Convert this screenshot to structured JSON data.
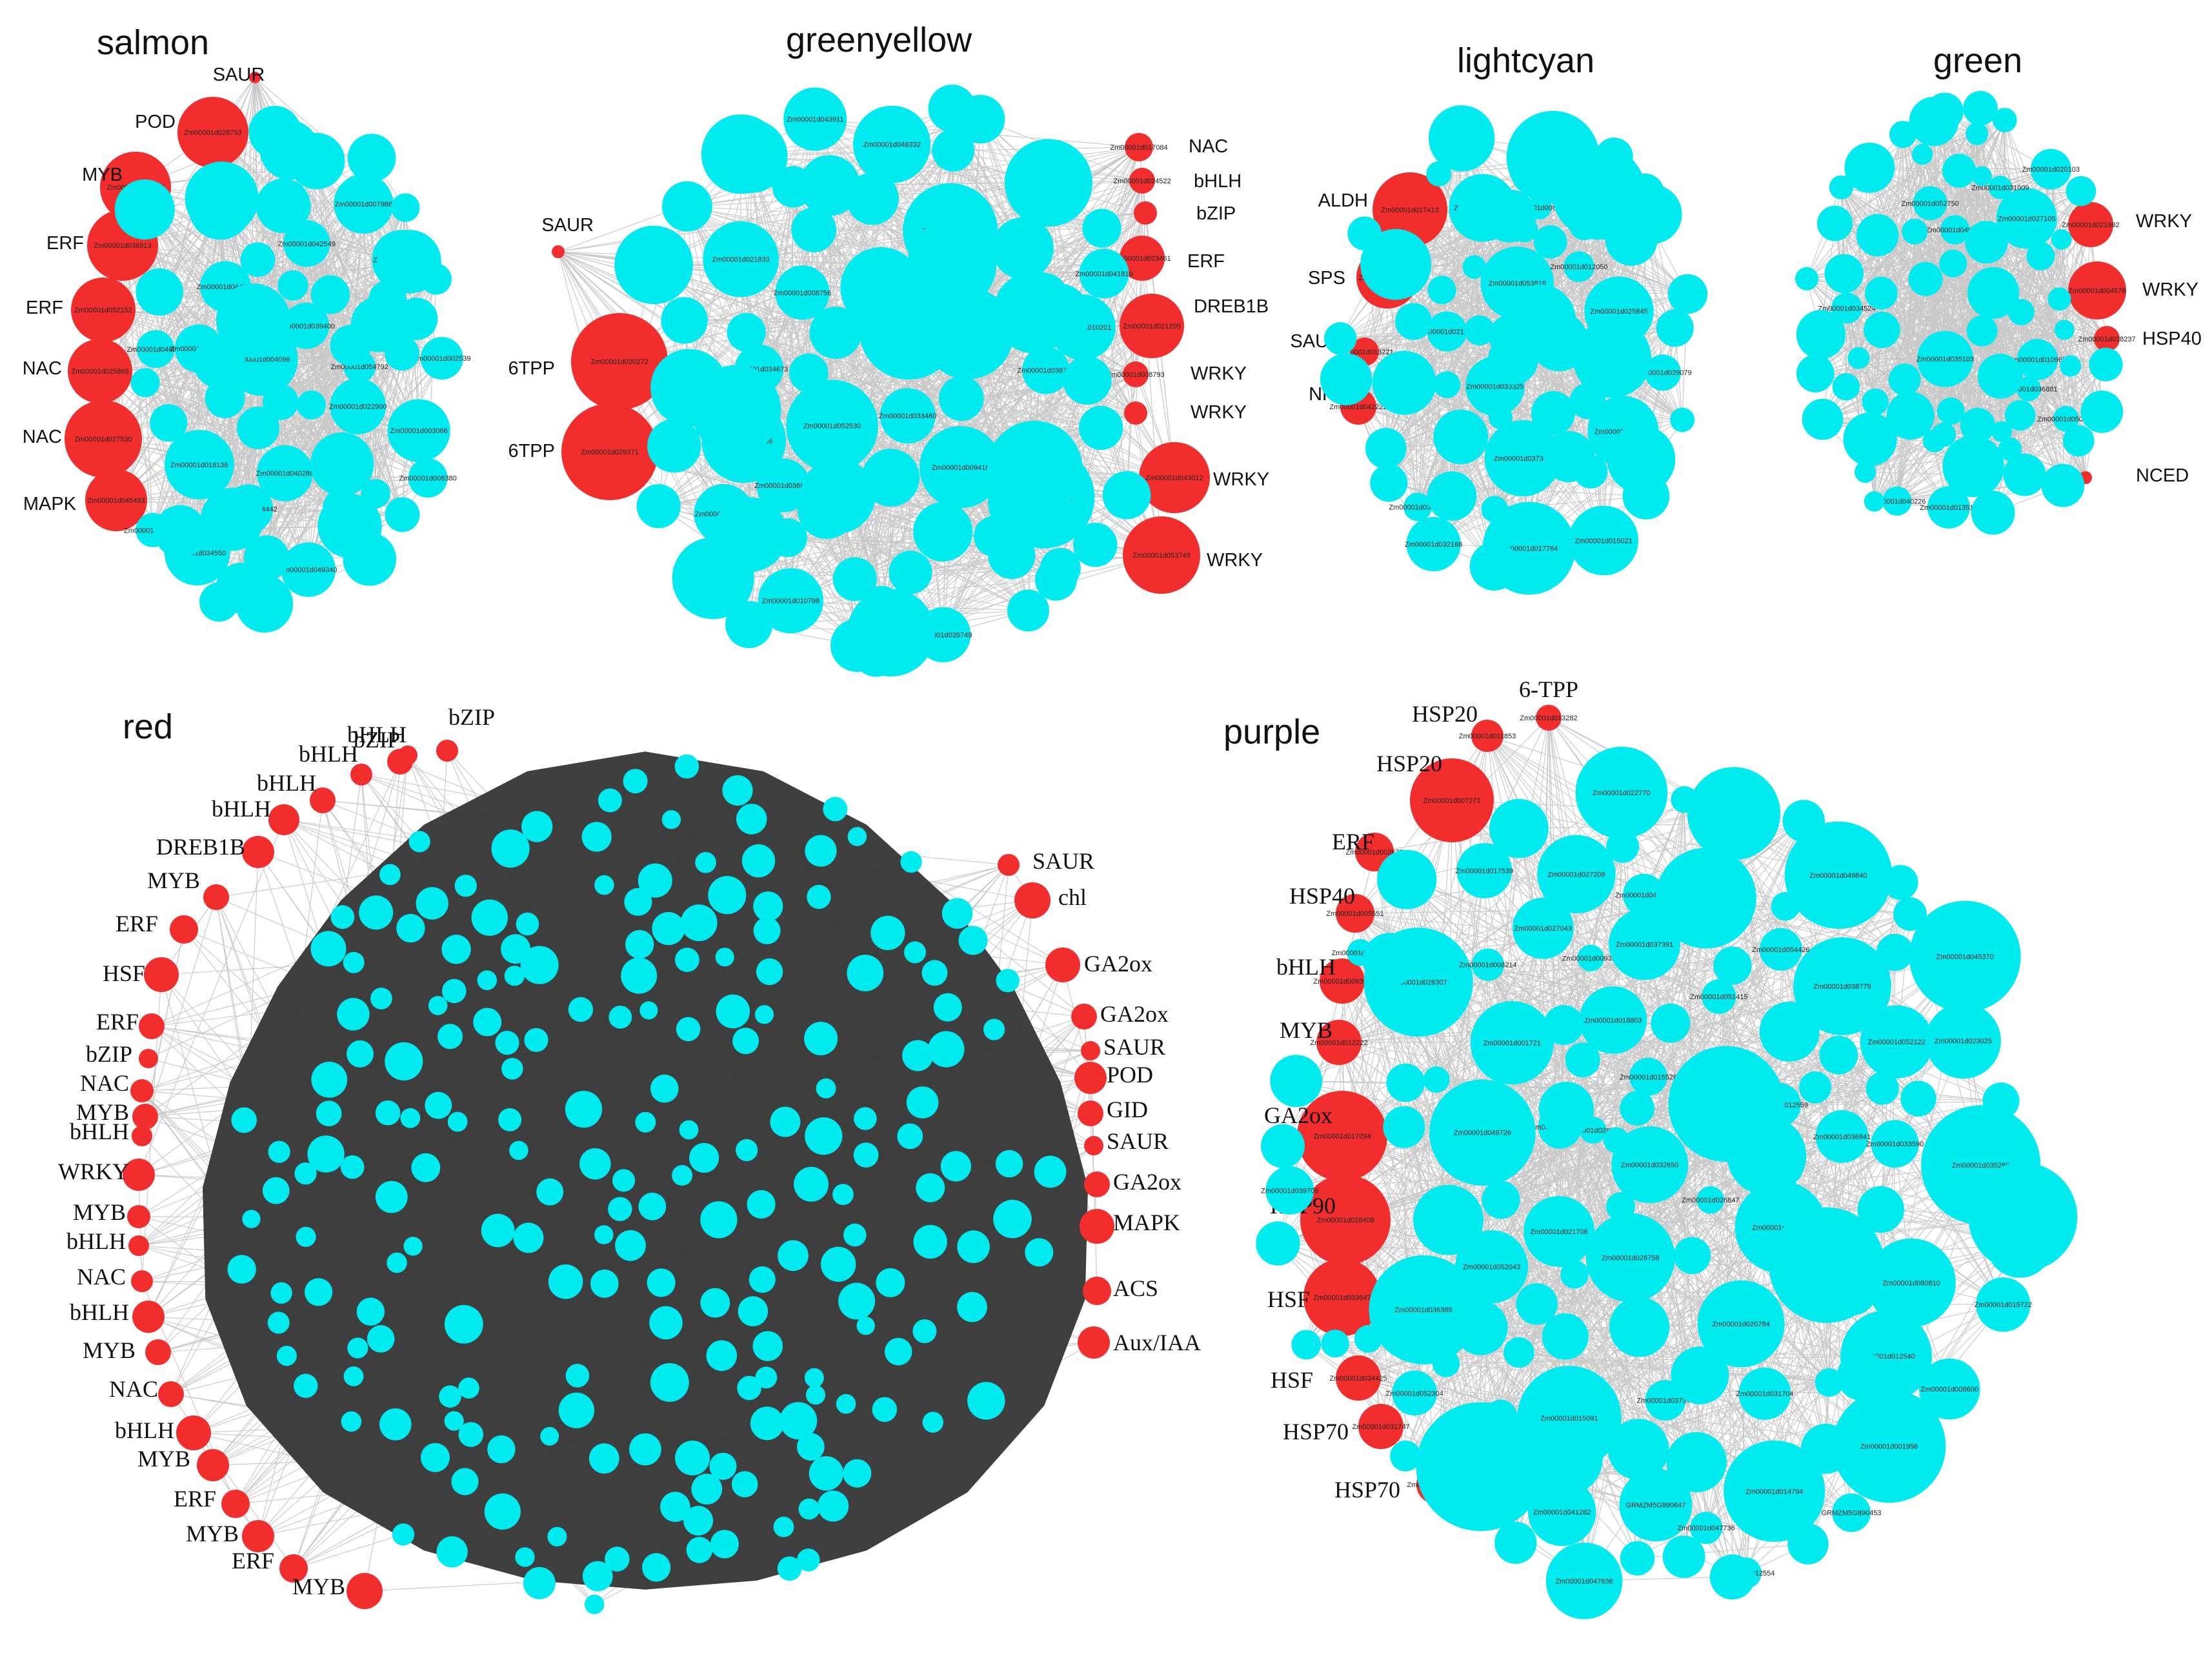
{
  "colors": {
    "hub": "#f22d2d",
    "node": "#00ebf0",
    "edge": "#3a3a3a",
    "background": "#ffffff"
  },
  "modules": [
    {
      "id": "salmon",
      "title": "salmon",
      "nodes": [
        {
          "id": "Zm00001d021457",
          "label": "SAUR"
        },
        {
          "id": "Zm00001d028753",
          "label": "POD"
        },
        {
          "id": "Zm00001d012263",
          "label": "MYB"
        },
        {
          "id": "Zm00001d036913",
          "label": "ERF"
        },
        {
          "id": "Zm00001d052152",
          "label": "ERF"
        },
        {
          "id": "Zm00001d025865",
          "label": "NAC"
        },
        {
          "id": "Zm00001d027530",
          "label": "NAC"
        },
        {
          "id": "Zm00001d045493",
          "label": "MAPK"
        },
        {
          "id": "Zm00001d002539",
          "label": ""
        },
        {
          "id": "Zm00001d049340",
          "label": ""
        },
        {
          "id": "Zm00001d034550",
          "label": ""
        },
        {
          "id": "Zm00001d042549",
          "label": ""
        },
        {
          "id": "Zm00001d007466",
          "label": ""
        },
        {
          "id": "Zm00001d043312",
          "label": ""
        },
        {
          "id": "Zm00001d018136",
          "label": ""
        },
        {
          "id": "Zm00001d022900",
          "label": ""
        },
        {
          "id": "Zm00001d046842",
          "label": ""
        },
        {
          "id": "Zm00001d039400",
          "label": ""
        },
        {
          "id": "Zm00001d049557",
          "label": ""
        },
        {
          "id": "Zm00001d044442",
          "label": ""
        },
        {
          "id": "Zm00001d007986",
          "label": ""
        },
        {
          "id": "Zm00001d008380",
          "label": ""
        },
        {
          "id": "Zm00001d044713",
          "label": ""
        },
        {
          "id": "Zm00001d054792",
          "label": ""
        },
        {
          "id": "Zm00001d052009",
          "label": ""
        },
        {
          "id": "Zm00001d004096",
          "label": ""
        },
        {
          "id": "Zm00001d040286",
          "label": ""
        },
        {
          "id": "Zm00001d003066",
          "label": ""
        }
      ]
    },
    {
      "id": "greenyellow",
      "title": "greenyellow",
      "nodes": [
        {
          "id": "Zm00001d017084",
          "label": "NAC"
        },
        {
          "id": "Zm00001d024522",
          "label": "bHLH"
        },
        {
          "id": "Zm00001d038734",
          "label": "bZIP"
        },
        {
          "id": "Zm00001d002385",
          "label": "SAUR"
        },
        {
          "id": "Zm00001d023461",
          "label": "ERF"
        },
        {
          "id": "Zm00001d021205",
          "label": "DREB1B"
        },
        {
          "id": "Zm00001d020272",
          "label": "6TPP"
        },
        {
          "id": "Zm00001d008793",
          "label": "WRKY"
        },
        {
          "id": "Zm00001d016720",
          "label": "WRKY"
        },
        {
          "id": "Zm00001d029371",
          "label": "6TPP"
        },
        {
          "id": "Zm00001d043012",
          "label": "WRKY"
        },
        {
          "id": "Zm00001d053749",
          "label": "WRKY"
        },
        {
          "id": "Zm00001d042812",
          "label": ""
        },
        {
          "id": "Zm00001d010201",
          "label": ""
        },
        {
          "id": "Zm00001d010798",
          "label": ""
        },
        {
          "id": "Zm00001d009418",
          "label": ""
        },
        {
          "id": "Zm00001d034673",
          "label": ""
        },
        {
          "id": "Zm00001d052530",
          "label": ""
        },
        {
          "id": "Zm00001d021833",
          "label": ""
        },
        {
          "id": "Zm00001d043911",
          "label": ""
        },
        {
          "id": "Zm00001d036781",
          "label": ""
        },
        {
          "id": "Zm00001d035749",
          "label": ""
        },
        {
          "id": "Zm00001d036823",
          "label": ""
        },
        {
          "id": "Zm00001d017568",
          "label": ""
        },
        {
          "id": "Zm00001d008756",
          "label": ""
        },
        {
          "id": "Zm00001d041819",
          "label": ""
        },
        {
          "id": "Zm00001d048332",
          "label": ""
        },
        {
          "id": "Zm00001d014737",
          "label": ""
        },
        {
          "id": "Zm00001d025722",
          "label": ""
        },
        {
          "id": "Zm00001d047136",
          "label": ""
        },
        {
          "id": "Zm00001d028002",
          "label": ""
        },
        {
          "id": "Zm00001d033460",
          "label": ""
        }
      ]
    },
    {
      "id": "lightcyan",
      "title": "lightcyan",
      "nodes": [
        {
          "id": "Zm00001d017413",
          "label": "ALDH"
        },
        {
          "id": "Zm00001d012053",
          "label": "SPS"
        },
        {
          "id": "Zm00001d013221",
          "label": "SAUR"
        },
        {
          "id": "Zm00001d042222",
          "label": "NR"
        },
        {
          "id": "Zm00001d043621",
          "label": ""
        },
        {
          "id": "Zm00001d032188",
          "label": ""
        },
        {
          "id": "Zm00001d015021",
          "label": ""
        },
        {
          "id": "Zm00001d025845",
          "label": ""
        },
        {
          "id": "Zm00001d053818",
          "label": ""
        },
        {
          "id": "Zm00001d021561",
          "label": ""
        },
        {
          "id": "Zm00001d034022",
          "label": ""
        },
        {
          "id": "Zm00001d043783",
          "label": ""
        },
        {
          "id": "Zm00001d033325",
          "label": ""
        },
        {
          "id": "Zm00001d029079",
          "label": ""
        },
        {
          "id": "Zm00001d012050",
          "label": ""
        },
        {
          "id": "Zm00001d037383",
          "label": ""
        },
        {
          "id": "Zm00001d008351",
          "label": ""
        },
        {
          "id": "Zm00001d034765",
          "label": ""
        },
        {
          "id": "Zm00001d017764",
          "label": ""
        },
        {
          "id": "Zm00001d004570",
          "label": ""
        }
      ]
    },
    {
      "id": "green",
      "title": "green",
      "nodes": [
        {
          "id": "Zm00001d021992",
          "label": "WRKY"
        },
        {
          "id": "Zm00001d004576",
          "label": "WRKY"
        },
        {
          "id": "Zm00001d028237",
          "label": "HSP40"
        },
        {
          "id": "Zm00001d015813",
          "label": "NCED"
        },
        {
          "id": "Zm00001d040543",
          "label": ""
        },
        {
          "id": "Zm00001d007687",
          "label": ""
        },
        {
          "id": "Zm00001d034524",
          "label": ""
        },
        {
          "id": "Zm00001d035103",
          "label": ""
        },
        {
          "id": "Zm00001d052750",
          "label": ""
        },
        {
          "id": "Zm00001d010965",
          "label": ""
        },
        {
          "id": "Zm00001d013517",
          "label": ""
        },
        {
          "id": "Zm00001d050001",
          "label": ""
        },
        {
          "id": "Zm00001d020103",
          "label": ""
        },
        {
          "id": "Zm00001d036881",
          "label": ""
        },
        {
          "id": "Zm00001d027105",
          "label": ""
        },
        {
          "id": "Zm00001d040226",
          "label": ""
        },
        {
          "id": "Zm00001d031009",
          "label": ""
        }
      ]
    },
    {
      "id": "red",
      "title": "red",
      "nodes": [
        {
          "id": "",
          "label": "bZIP"
        },
        {
          "id": "",
          "label": "bHLH"
        },
        {
          "id": "",
          "label": "bZIP"
        },
        {
          "id": "",
          "label": "bHLH"
        },
        {
          "id": "",
          "label": "bHLH"
        },
        {
          "id": "",
          "label": "bHLH"
        },
        {
          "id": "",
          "label": "DREB1B"
        },
        {
          "id": "",
          "label": "MYB"
        },
        {
          "id": "",
          "label": "ERF"
        },
        {
          "id": "",
          "label": "HSF"
        },
        {
          "id": "",
          "label": "ERF"
        },
        {
          "id": "",
          "label": "bZIP"
        },
        {
          "id": "",
          "label": "NAC"
        },
        {
          "id": "",
          "label": "MYB"
        },
        {
          "id": "",
          "label": "bHLH"
        },
        {
          "id": "",
          "label": "WRKY"
        },
        {
          "id": "",
          "label": "MYB"
        },
        {
          "id": "",
          "label": "bHLH"
        },
        {
          "id": "",
          "label": "NAC"
        },
        {
          "id": "",
          "label": "bHLH"
        },
        {
          "id": "",
          "label": "MYB"
        },
        {
          "id": "",
          "label": "NAC"
        },
        {
          "id": "",
          "label": "bHLH"
        },
        {
          "id": "",
          "label": "MYB"
        },
        {
          "id": "",
          "label": "ERF"
        },
        {
          "id": "",
          "label": "MYB"
        },
        {
          "id": "",
          "label": "ERF"
        },
        {
          "id": "",
          "label": "MYB"
        },
        {
          "id": "",
          "label": "SAUR"
        },
        {
          "id": "",
          "label": "chl"
        },
        {
          "id": "",
          "label": "GA2ox"
        },
        {
          "id": "",
          "label": "GA2ox"
        },
        {
          "id": "",
          "label": "SAUR"
        },
        {
          "id": "",
          "label": "POD"
        },
        {
          "id": "",
          "label": "GID"
        },
        {
          "id": "",
          "label": "SAUR"
        },
        {
          "id": "",
          "label": "GA2ox"
        },
        {
          "id": "",
          "label": "MAPK"
        },
        {
          "id": "",
          "label": "ACS"
        },
        {
          "id": "",
          "label": "Aux/IAA"
        }
      ]
    },
    {
      "id": "purple",
      "title": "purple",
      "nodes": [
        {
          "id": "Zm00001d013282",
          "label": "6-TPP"
        },
        {
          "id": "Zm00001d011853",
          "label": "HSP20"
        },
        {
          "id": "Zm00001d007271",
          "label": "HSP20"
        },
        {
          "id": "Zm00001d002673",
          "label": "ERF"
        },
        {
          "id": "Zm00001d005551",
          "label": "HSP40"
        },
        {
          "id": "Zm00001d009360",
          "label": "bHLH"
        },
        {
          "id": "Zm00001d012222",
          "label": "MYB"
        },
        {
          "id": "Zm00001d017294",
          "label": "GA2ox"
        },
        {
          "id": "Zm00001d028408",
          "label": "HSP90"
        },
        {
          "id": "Zm00001d033647",
          "label": "HSF"
        },
        {
          "id": "Zm00001d034425",
          "label": "HSF"
        },
        {
          "id": "Zm00001d031747",
          "label": "HSP70"
        },
        {
          "id": "Zm00001d047368",
          "label": "HSP70"
        },
        {
          "id": "Zm00001d052117",
          "label": ""
        },
        {
          "id": "Zm00001d036941",
          "label": ""
        },
        {
          "id": "Zm00001d045370",
          "label": ""
        },
        {
          "id": "Zm00001d001958",
          "label": ""
        },
        {
          "id": "Zm00001d035280",
          "label": ""
        },
        {
          "id": "Zm00001d001721",
          "label": ""
        },
        {
          "id": "Zm00001d023025",
          "label": ""
        },
        {
          "id": "Zm00001d045109",
          "label": ""
        },
        {
          "id": "Zm00001d027208",
          "label": ""
        },
        {
          "id": "Zm00001d026847",
          "label": ""
        },
        {
          "id": "Zm00001d014794",
          "label": ""
        },
        {
          "id": "Zm00001d031704",
          "label": ""
        },
        {
          "id": "Zm00001d038779",
          "label": ""
        },
        {
          "id": "Zm00001d041282",
          "label": ""
        },
        {
          "id": "GRMZM5G890647",
          "label": ""
        },
        {
          "id": "Zm00001d046537",
          "label": ""
        },
        {
          "id": "Zm00001d012540",
          "label": ""
        },
        {
          "id": "Zm00001d026307",
          "label": ""
        },
        {
          "id": "Zm00001d015722",
          "label": ""
        },
        {
          "id": "Zm00001d020784",
          "label": ""
        },
        {
          "id": "Zm00001d015091",
          "label": ""
        },
        {
          "id": "Zm00001d037574",
          "label": ""
        },
        {
          "id": "Zm00001d009359",
          "label": ""
        },
        {
          "id": "Zm00001d052304",
          "label": ""
        },
        {
          "id": "Zm00001d022770",
          "label": ""
        },
        {
          "id": "Zm00001d020801",
          "label": ""
        },
        {
          "id": "Zm00001d025696",
          "label": ""
        },
        {
          "id": "Zm00001d036389",
          "label": ""
        },
        {
          "id": "Zm00001d026758",
          "label": ""
        },
        {
          "id": "Zm00001d049726",
          "label": ""
        },
        {
          "id": "Zm00001d052043",
          "label": ""
        },
        {
          "id": "Zm00001d012554",
          "label": ""
        },
        {
          "id": "Zm00001d038238",
          "label": ""
        },
        {
          "id": "Zm00001d047636",
          "label": ""
        },
        {
          "id": "Zm00001d008214",
          "label": ""
        },
        {
          "id": "Zm00001d080810",
          "label": ""
        },
        {
          "id": "Zm00001d049840",
          "label": ""
        },
        {
          "id": "Zm00001d047736",
          "label": ""
        },
        {
          "id": "Zm00001d052122",
          "label": ""
        },
        {
          "id": "Zm00001d018803",
          "label": ""
        },
        {
          "id": "Zm00001d051415",
          "label": ""
        },
        {
          "id": "Zm00001d028721",
          "label": ""
        },
        {
          "id": "Zm00001d017539",
          "label": ""
        },
        {
          "id": "Zm00001d032650",
          "label": ""
        },
        {
          "id": "Zm00001d054426",
          "label": ""
        },
        {
          "id": "Zm00001d027043",
          "label": ""
        },
        {
          "id": "Zm00001d015526",
          "label": ""
        },
        {
          "id": "Zm00001d021706",
          "label": ""
        },
        {
          "id": "Zm00001d037391",
          "label": ""
        },
        {
          "id": "Zm00001d012559",
          "label": ""
        },
        {
          "id": "Zm00001d033590",
          "label": ""
        },
        {
          "id": "Zm00001d008600",
          "label": ""
        },
        {
          "id": "Zm00001d039706",
          "label": ""
        },
        {
          "id": "GRMZM5G890453",
          "label": ""
        }
      ]
    }
  ]
}
